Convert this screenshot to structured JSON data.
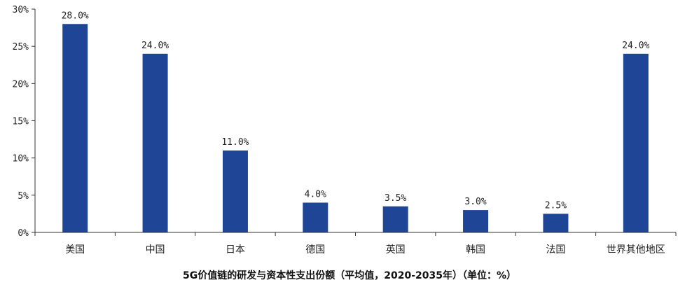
{
  "chart_data": {
    "type": "bar",
    "title": "5G价值链的研发与资本性支出份额（平均值，2020-2035年）（单位：%）",
    "categories": [
      "美国",
      "中国",
      "日本",
      "德国",
      "英国",
      "韩国",
      "法国",
      "世界其他地区"
    ],
    "values": [
      28.0,
      24.0,
      11.0,
      4.0,
      3.5,
      3.0,
      2.5,
      24.0
    ],
    "data_labels": [
      "28.0%",
      "24.0%",
      "11.0%",
      "4.0%",
      "3.5%",
      "3.0%",
      "2.5%",
      "24.0%"
    ],
    "ylim": [
      0,
      30
    ],
    "yticks": [
      0,
      5,
      10,
      15,
      20,
      25,
      30
    ],
    "ytick_labels": [
      "0%",
      "5%",
      "10%",
      "15%",
      "20%",
      "25%",
      "30%"
    ],
    "xlabel": "",
    "ylabel": "",
    "grid": false,
    "legend": "none",
    "bar_color": "#1f4596"
  }
}
